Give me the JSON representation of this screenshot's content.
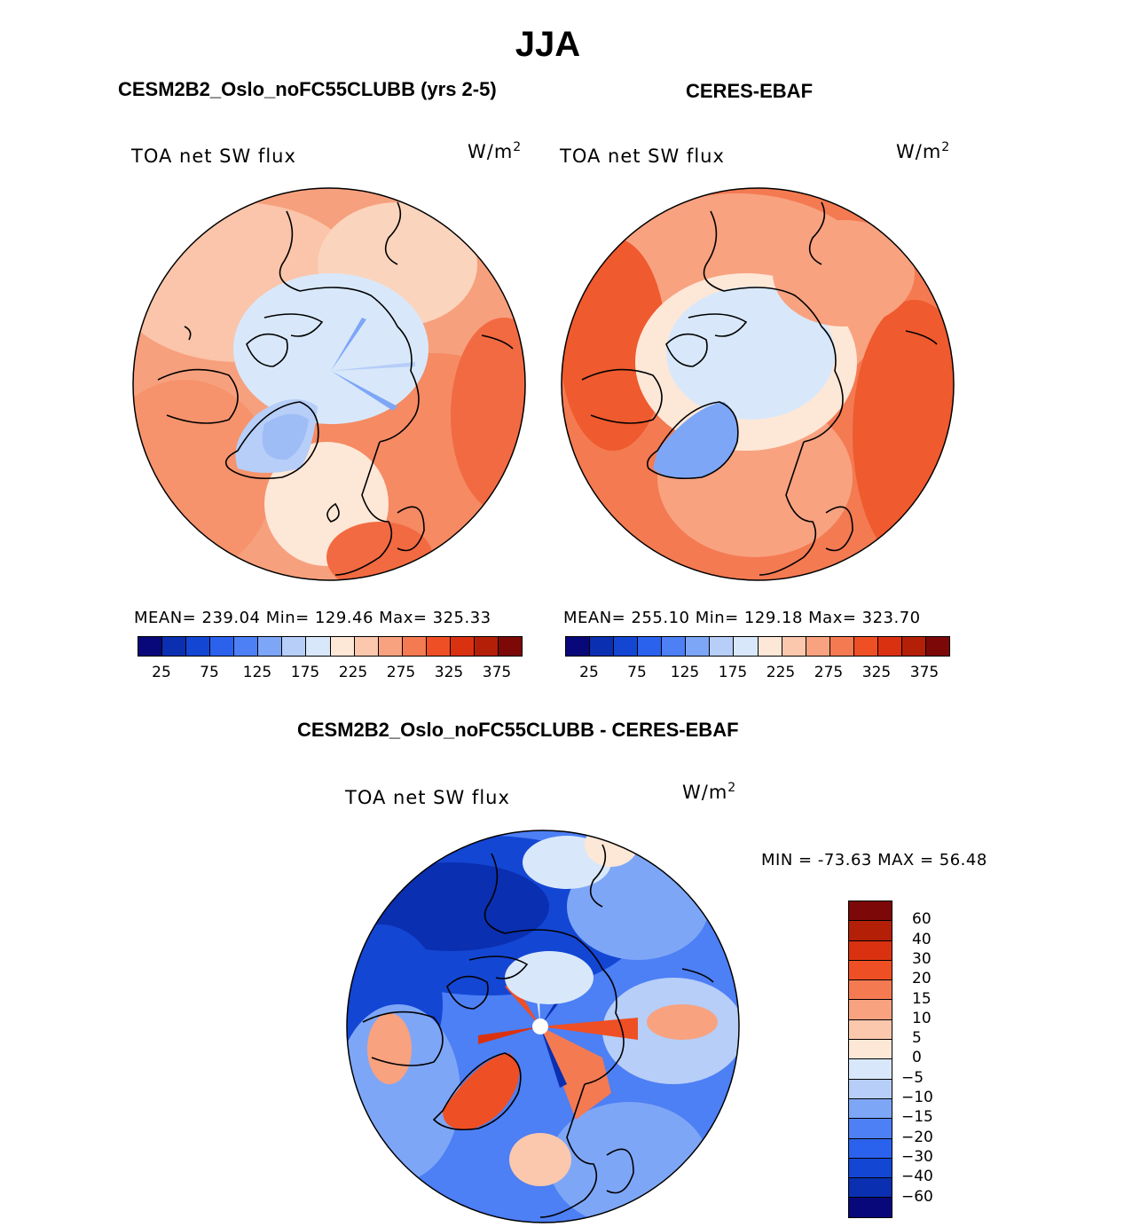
{
  "figure": {
    "season": "JJA",
    "left_title": "CESM2B2_Oslo_noFC55CLUBB (yrs 2-5)",
    "right_title": "CERES-EBAF",
    "diff_title": "CESM2B2_Oslo_noFC55CLUBB - CERES-EBAF"
  },
  "panels": {
    "model": {
      "variable": "TOA net SW flux",
      "unit_base": "W/m",
      "unit_exp": "2",
      "stats": "MEAN= 239.04   Min= 129.46   Max= 325.33"
    },
    "obs": {
      "variable": "TOA net SW flux",
      "unit_base": "W/m",
      "unit_exp": "2",
      "stats": "MEAN= 255.10   Min= 129.18   Max= 323.70"
    },
    "diff": {
      "variable": "TOA net SW flux",
      "unit_base": "W/m",
      "unit_exp": "2",
      "stats": "MIN = -73.63 MAX =   56.48"
    }
  },
  "colorbars": {
    "absolute": {
      "colors": [
        "#08087a",
        "#0a2fb0",
        "#1446d4",
        "#2a62ee",
        "#4d7ff5",
        "#7ea6f7",
        "#b6cef8",
        "#d8e8fa",
        "#fde7d7",
        "#fbc8ad",
        "#f8a280",
        "#f47a52",
        "#ef4f24",
        "#da3210",
        "#b41f08",
        "#7c0808"
      ],
      "ticks": [
        "25",
        "75",
        "125",
        "175",
        "225",
        "275",
        "325",
        "375"
      ]
    },
    "difference": {
      "colors": [
        "#7c0808",
        "#b41f08",
        "#da3210",
        "#ef4f24",
        "#f47a52",
        "#f8a280",
        "#fbc8ad",
        "#fde7d7",
        "#d8e8fa",
        "#b6cef8",
        "#7ea6f7",
        "#4d7ff5",
        "#2a62ee",
        "#1446d4",
        "#0a2fb0",
        "#08087a"
      ],
      "labels": [
        "60",
        "40",
        "30",
        "20",
        "15",
        "10",
        "5",
        "0",
        "-5",
        "-10",
        "-15",
        "-20",
        "-30",
        "-40",
        "-60"
      ]
    }
  }
}
